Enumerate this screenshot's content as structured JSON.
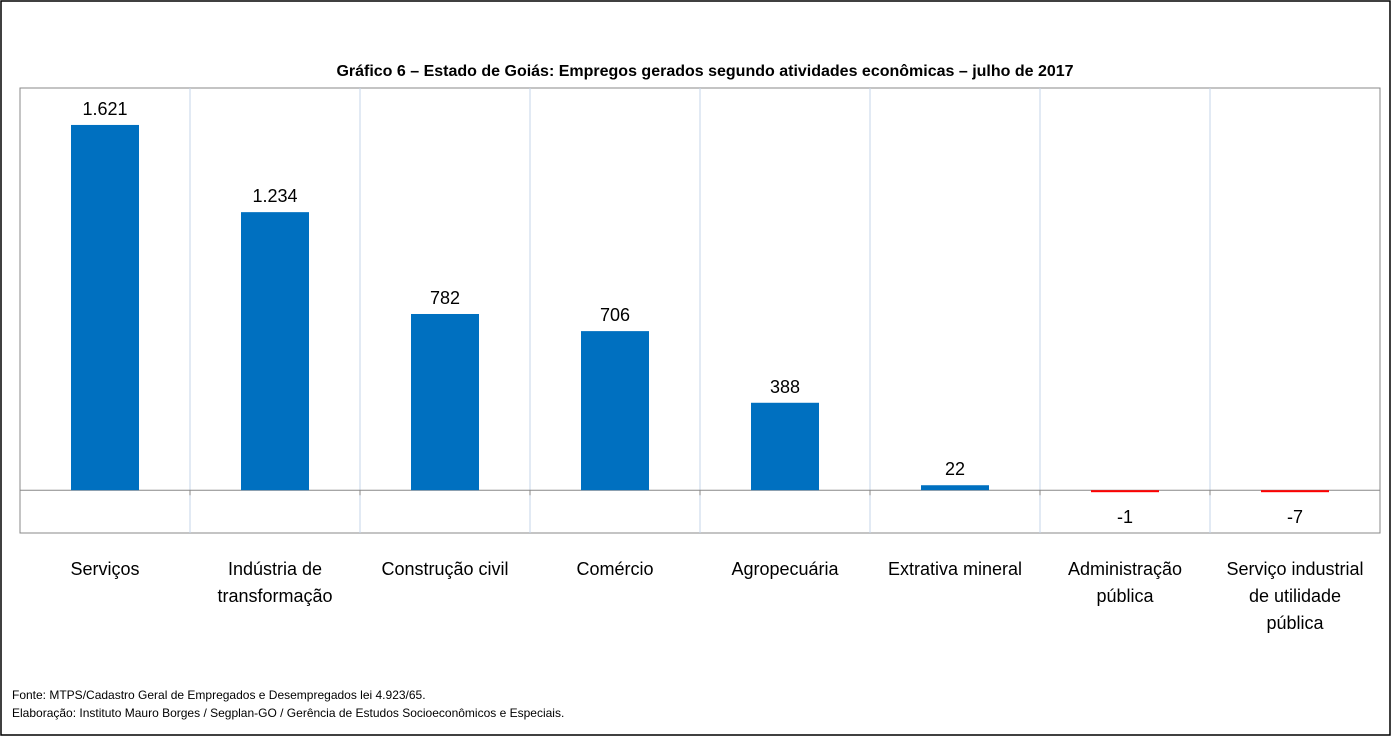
{
  "chart_data": {
    "type": "bar",
    "title": "Gráfico 6 – Estado de Goiás: Empregos gerados segundo atividades econômicas – julho de 2017",
    "categories": [
      "Serviços",
      "Indústria de\ntransformação",
      "Construção civil",
      "Comércio",
      "Agropecuária",
      "Extrativa mineral",
      "Administração\npública",
      "Serviço industrial\nde utilidade\npública"
    ],
    "values": [
      1621,
      1234,
      782,
      706,
      388,
      22,
      -1,
      -7
    ],
    "value_labels": [
      "1.621",
      "1.234",
      "782",
      "706",
      "388",
      "22",
      "-1",
      "-7"
    ],
    "color": "#0070c0",
    "negative_color": "#ff0000",
    "ylim": [
      -190,
      1785
    ],
    "grid": true,
    "source": "Fonte: MTPS/Cadastro Geral de Empregados e Desempregados lei 4.923/65.",
    "credit": "Elaboração: Instituto Mauro Borges / Segplan-GO / Gerência de Estudos Socioeconômicos e Especiais."
  }
}
